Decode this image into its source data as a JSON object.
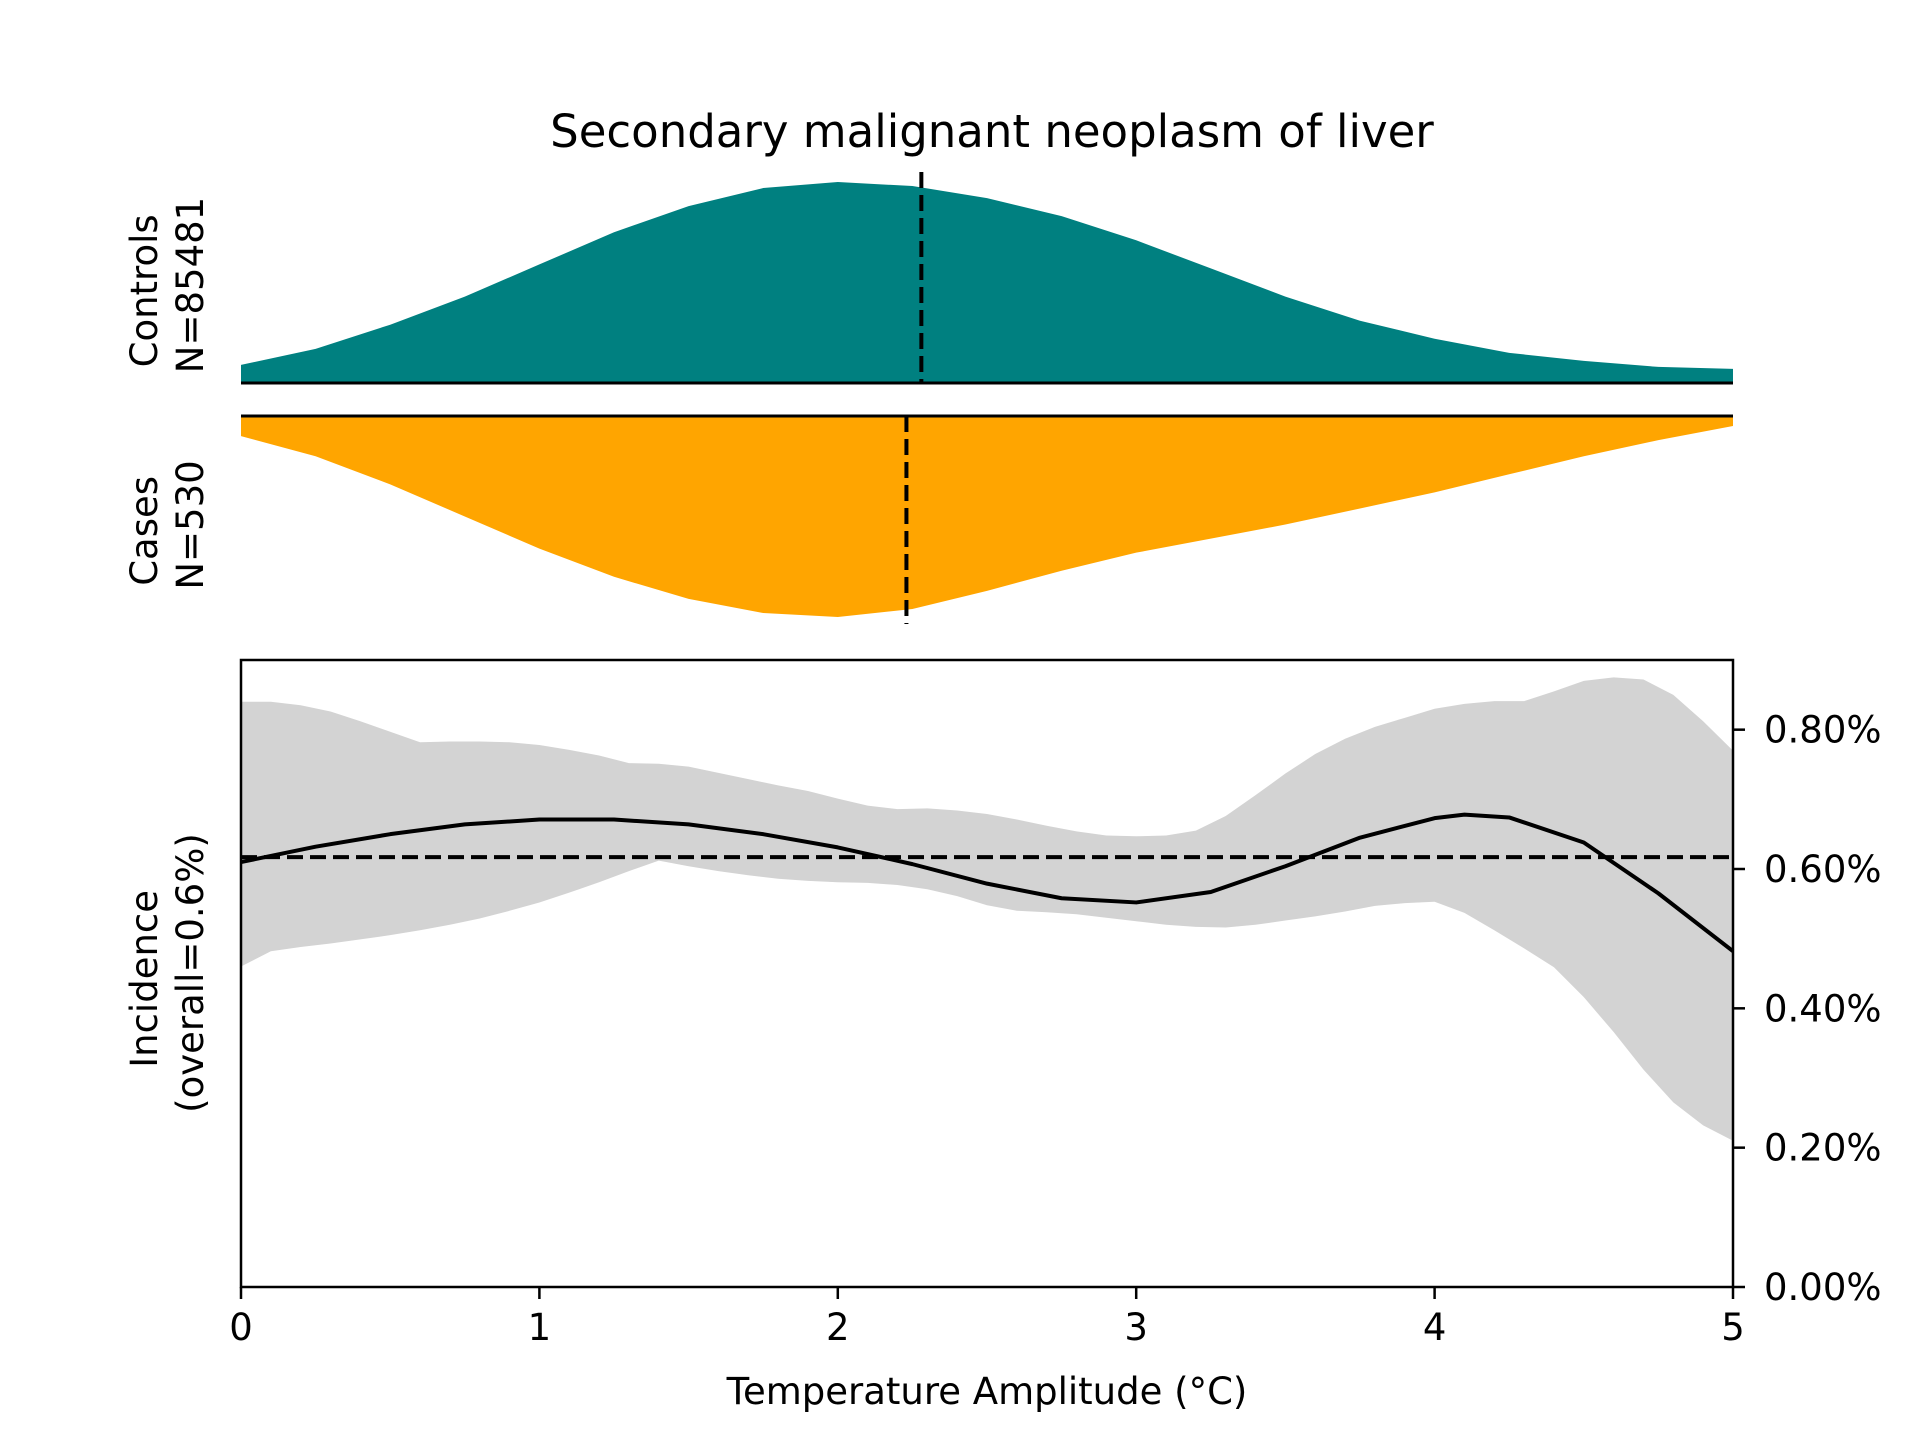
{
  "colors": {
    "controls": "#008080",
    "cases": "#FFA500",
    "ci_band": "#D3D3D3",
    "line": "#000000"
  },
  "chart_data": {
    "type": "area",
    "title": "Secondary malignant neoplasm of liver",
    "xlabel": "Temperature Amplitude (°C)",
    "xlim": [
      0,
      5
    ],
    "x_ticks": [
      "0",
      "1",
      "2",
      "3",
      "4",
      "5"
    ],
    "x_tick_values": [
      0,
      1,
      2,
      3,
      4,
      5
    ],
    "panels": {
      "controls": {
        "label_line1": "Controls",
        "label_line2": "N=85481",
        "median": 2.28,
        "density": {
          "x": [
            0,
            0.25,
            0.5,
            0.75,
            1.0,
            1.25,
            1.5,
            1.75,
            2.0,
            2.25,
            2.5,
            2.75,
            3.0,
            3.25,
            3.5,
            3.75,
            4.0,
            4.25,
            4.5,
            4.75,
            5.0
          ],
          "y": [
            0.09,
            0.17,
            0.29,
            0.43,
            0.59,
            0.75,
            0.88,
            0.97,
            1.0,
            0.98,
            0.92,
            0.83,
            0.71,
            0.57,
            0.43,
            0.31,
            0.22,
            0.15,
            0.11,
            0.08,
            0.07
          ]
        }
      },
      "cases": {
        "label_line1": "Cases",
        "label_line2": "N=530",
        "median": 2.23,
        "density": {
          "x": [
            0,
            0.25,
            0.5,
            0.75,
            1.0,
            1.25,
            1.5,
            1.75,
            2.0,
            2.25,
            2.5,
            2.75,
            3.0,
            3.25,
            3.5,
            3.75,
            4.0,
            4.25,
            4.5,
            4.75,
            5.0
          ],
          "y": [
            0.1,
            0.2,
            0.34,
            0.5,
            0.66,
            0.8,
            0.91,
            0.98,
            1.0,
            0.96,
            0.87,
            0.77,
            0.68,
            0.61,
            0.54,
            0.46,
            0.38,
            0.29,
            0.2,
            0.12,
            0.05
          ]
        }
      },
      "incidence": {
        "ylabel_line1": "Incidence",
        "ylabel_line2": "(overall=0.6%)",
        "ylim": [
          0,
          0.009
        ],
        "y_ticks": [
          "0.00%",
          "0.20%",
          "0.40%",
          "0.60%",
          "0.80%"
        ],
        "y_tick_values": [
          0,
          0.002,
          0.004,
          0.006,
          0.008
        ],
        "overall": 0.00617,
        "line": {
          "x": [
            0,
            0.25,
            0.5,
            0.75,
            1.0,
            1.25,
            1.5,
            1.75,
            2.0,
            2.25,
            2.5,
            2.75,
            3.0,
            3.25,
            3.5,
            3.75,
            4.0,
            4.1,
            4.25,
            4.5,
            4.75,
            5.0
          ],
          "y": [
            0.0061,
            0.00632,
            0.0065,
            0.00664,
            0.00671,
            0.00671,
            0.00664,
            0.0065,
            0.00631,
            0.00607,
            0.00579,
            0.00558,
            0.00552,
            0.00567,
            0.00604,
            0.00645,
            0.00673,
            0.00678,
            0.00674,
            0.00638,
            0.00565,
            0.00482
          ]
        },
        "band_upper": {
          "x": [
            0,
            0.1,
            0.2,
            0.3,
            0.4,
            0.5,
            0.6,
            0.7,
            0.8,
            0.9,
            1.0,
            1.1,
            1.2,
            1.3,
            1.4,
            1.5,
            1.6,
            1.7,
            1.8,
            1.9,
            2.0,
            2.1,
            2.2,
            2.3,
            2.4,
            2.5,
            2.6,
            2.7,
            2.8,
            2.9,
            3.0,
            3.1,
            3.2,
            3.3,
            3.4,
            3.5,
            3.6,
            3.7,
            3.8,
            3.9,
            4.0,
            4.1,
            4.2,
            4.3,
            4.4,
            4.5,
            4.6,
            4.7,
            4.8,
            4.9,
            5.0
          ],
          "y": [
            0.0084,
            0.0084,
            0.00835,
            0.00826,
            0.00812,
            0.00797,
            0.00782,
            0.00783,
            0.00783,
            0.00782,
            0.00778,
            0.00771,
            0.00763,
            0.00752,
            0.00751,
            0.00747,
            0.00738,
            0.00729,
            0.0072,
            0.00712,
            0.00701,
            0.00691,
            0.00686,
            0.00687,
            0.00684,
            0.00679,
            0.00671,
            0.00662,
            0.00654,
            0.00648,
            0.00647,
            0.00648,
            0.00655,
            0.00676,
            0.00706,
            0.00737,
            0.00765,
            0.00787,
            0.00804,
            0.00817,
            0.0083,
            0.00837,
            0.00841,
            0.00841,
            0.00855,
            0.0087,
            0.00875,
            0.00872,
            0.0085,
            0.00812,
            0.0077
          ]
        },
        "band_lower": {
          "x": [
            0,
            0.1,
            0.2,
            0.3,
            0.4,
            0.5,
            0.6,
            0.7,
            0.8,
            0.9,
            1.0,
            1.1,
            1.2,
            1.3,
            1.4,
            1.5,
            1.6,
            1.7,
            1.8,
            1.9,
            2.0,
            2.1,
            2.2,
            2.3,
            2.4,
            2.5,
            2.6,
            2.7,
            2.8,
            2.9,
            3.0,
            3.1,
            3.2,
            3.3,
            3.4,
            3.5,
            3.6,
            3.7,
            3.8,
            3.9,
            4.0,
            4.1,
            4.2,
            4.3,
            4.4,
            4.5,
            4.6,
            4.7,
            4.8,
            4.9,
            5.0
          ],
          "y": [
            0.0046,
            0.00482,
            0.00488,
            0.00493,
            0.00499,
            0.00505,
            0.00512,
            0.0052,
            0.00529,
            0.0054,
            0.00552,
            0.00566,
            0.00581,
            0.00597,
            0.00612,
            0.00604,
            0.00597,
            0.00591,
            0.00586,
            0.00583,
            0.00581,
            0.0058,
            0.00577,
            0.00571,
            0.00561,
            0.00548,
            0.0054,
            0.00538,
            0.00535,
            0.0053,
            0.00525,
            0.0052,
            0.00517,
            0.00516,
            0.0052,
            0.00526,
            0.00532,
            0.00539,
            0.00547,
            0.00551,
            0.00553,
            0.00537,
            0.00512,
            0.00486,
            0.00459,
            0.00416,
            0.00366,
            0.00312,
            0.00265,
            0.00232,
            0.0021
          ]
        }
      }
    }
  }
}
